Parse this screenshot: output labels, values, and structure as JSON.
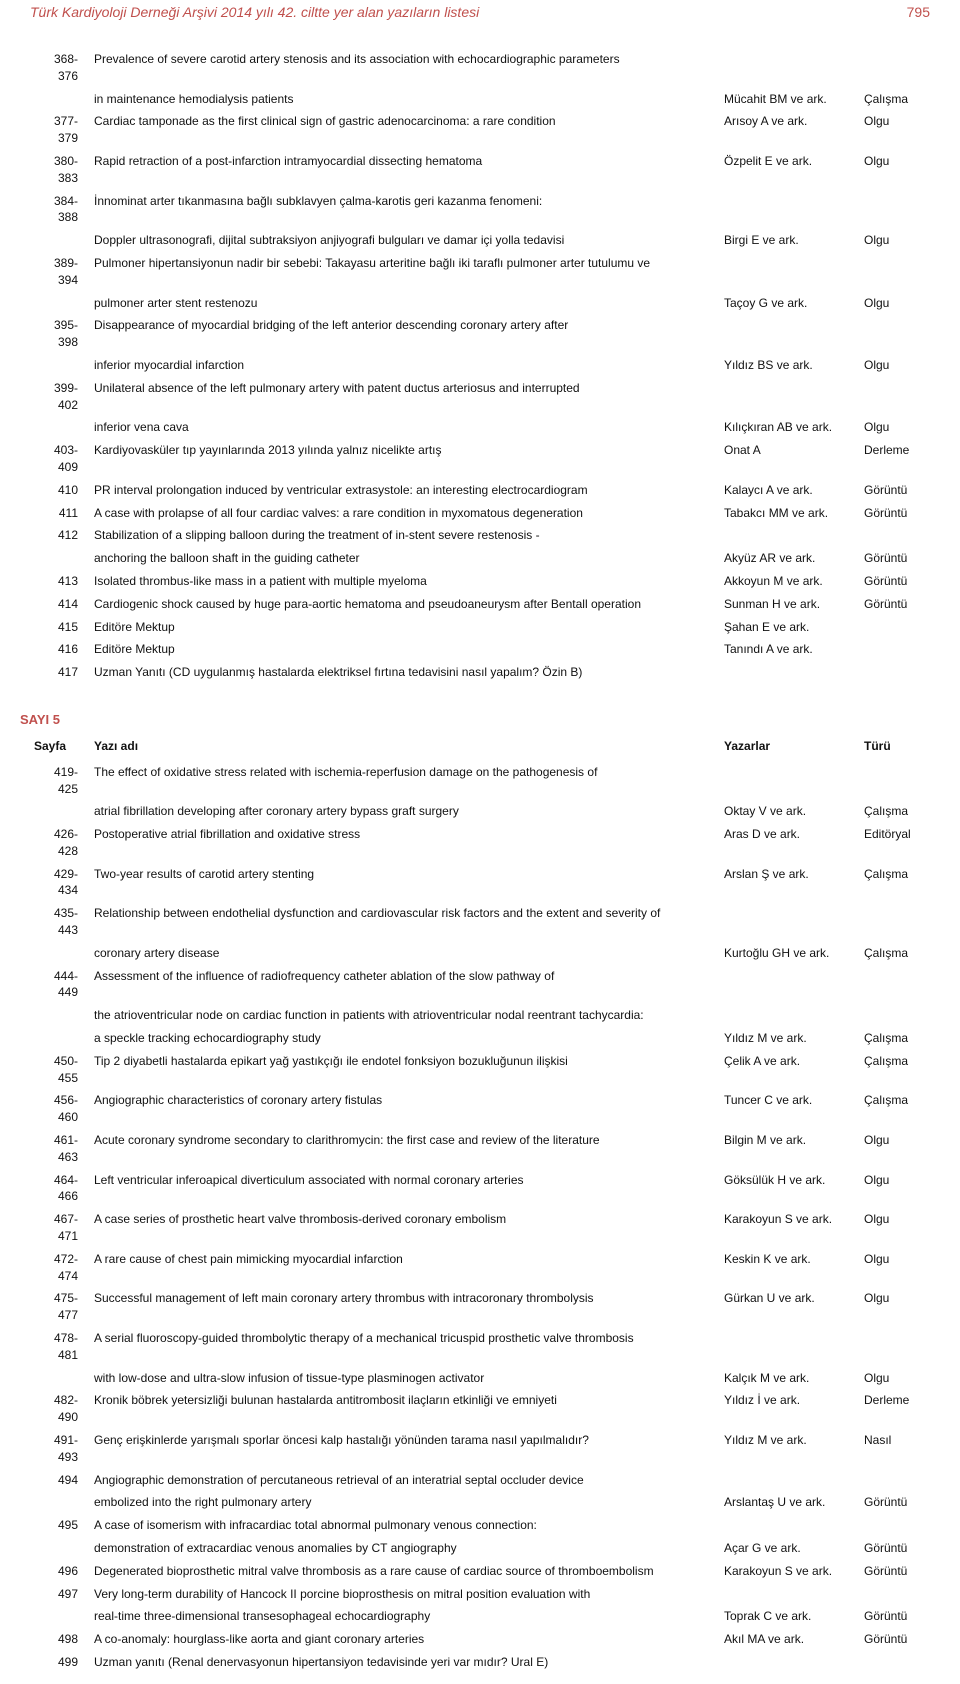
{
  "header": {
    "title": "Türk Kardiyoloji Derneği Arşivi 2014 yılı 42. ciltte yer alan yazıların listesi",
    "page_number": "795"
  },
  "section1": {
    "rows": [
      {
        "pages": "368-376",
        "lines": [
          {
            "t": "Prevalence of severe carotid artery stenosis and its association with echocardiographic parameters",
            "a": "",
            "y": ""
          },
          {
            "t": "in maintenance hemodialysis patients",
            "a": "Mücahit BM ve ark.",
            "y": "Çalışma"
          }
        ]
      },
      {
        "pages": "377-379",
        "lines": [
          {
            "t": "Cardiac tamponade as the first clinical sign of gastric adenocarcinoma: a rare condition",
            "a": "Arısoy A ve ark.",
            "y": "Olgu"
          }
        ]
      },
      {
        "pages": "380-383",
        "lines": [
          {
            "t": "Rapid retraction of a post-infarction intramyocardial dissecting hematoma",
            "a": "Özpelit E ve ark.",
            "y": "Olgu"
          }
        ]
      },
      {
        "pages": "384-388",
        "lines": [
          {
            "t": "İnnominat arter tıkanmasına bağlı subklavyen çalma-karotis geri kazanma fenomeni:",
            "a": "",
            "y": ""
          },
          {
            "t": "Doppler ultrasonografi, dijital subtraksiyon anjiyografi bulguları ve damar içi yolla tedavisi",
            "a": "Birgi E ve ark.",
            "y": "Olgu"
          }
        ]
      },
      {
        "pages": "389-394",
        "lines": [
          {
            "t": "Pulmoner hipertansiyonun nadir bir sebebi: Takayasu arteritine bağlı iki taraflı pulmoner arter tutulumu ve",
            "a": "",
            "y": ""
          },
          {
            "t": "pulmoner arter stent restenozu",
            "a": "Taçoy G ve ark.",
            "y": "Olgu"
          }
        ]
      },
      {
        "pages": "395-398",
        "lines": [
          {
            "t": "Disappearance of myocardial bridging of the left anterior descending coronary artery after",
            "a": "",
            "y": ""
          },
          {
            "t": "inferior myocardial infarction",
            "a": "Yıldız BS ve ark.",
            "y": "Olgu"
          }
        ]
      },
      {
        "pages": "399-402",
        "lines": [
          {
            "t": "Unilateral absence of the left pulmonary artery with patent ductus arteriosus and interrupted",
            "a": "",
            "y": ""
          },
          {
            "t": "inferior vena cava",
            "a": "Kılıçkıran AB ve ark.",
            "y": "Olgu"
          }
        ]
      },
      {
        "pages": "403-409",
        "lines": [
          {
            "t": "Kardiyovasküler tıp yayınlarında 2013 yılında yalnız nicelikte artış",
            "a": "Onat A",
            "y": "Derleme"
          }
        ]
      },
      {
        "pages": "410",
        "lines": [
          {
            "t": "PR interval prolongation induced by ventricular extrasystole: an interesting electrocardiogram",
            "a": "Kalaycı A ve ark.",
            "y": "Görüntü"
          }
        ]
      },
      {
        "pages": "411",
        "lines": [
          {
            "t": "A case with prolapse of all four cardiac valves: a rare condition in myxomatous degeneration",
            "a": "Tabakcı MM ve ark.",
            "y": "Görüntü"
          }
        ]
      },
      {
        "pages": "412",
        "lines": [
          {
            "t": "Stabilization of a slipping balloon during the treatment of in-stent severe restenosis -",
            "a": "",
            "y": ""
          },
          {
            "t": "anchoring the balloon shaft in the guiding catheter",
            "a": "Akyüz AR ve ark.",
            "y": "Görüntü"
          }
        ]
      },
      {
        "pages": "413",
        "lines": [
          {
            "t": "Isolated thrombus-like mass in a patient with multiple myeloma",
            "a": "Akkoyun M ve ark.",
            "y": "Görüntü"
          }
        ]
      },
      {
        "pages": "414",
        "lines": [
          {
            "t": "Cardiogenic shock caused by huge para-aortic hematoma and pseudoaneurysm after Bentall operation",
            "a": "Sunman H ve ark.",
            "y": "Görüntü"
          }
        ]
      },
      {
        "pages": "415",
        "lines": [
          {
            "t": "Editöre Mektup",
            "a": "Şahan E ve ark.",
            "y": ""
          }
        ]
      },
      {
        "pages": "416",
        "lines": [
          {
            "t": "Editöre Mektup",
            "a": "Tanındı A ve ark.",
            "y": ""
          }
        ]
      },
      {
        "pages": "417",
        "lines": [
          {
            "t": "Uzman Yanıtı (CD uygulanmış hastalarda elektriksel fırtına tedavisini nasıl yapalım? Özin B)",
            "a": "",
            "y": ""
          }
        ]
      }
    ]
  },
  "section2": {
    "label": "SAYI 5",
    "header": {
      "pages": "Sayfa",
      "title": "Yazı adı",
      "authors": "Yazarlar",
      "type": "Türü"
    },
    "rows": [
      {
        "pages": "419-425",
        "lines": [
          {
            "t": "The effect of oxidative stress related with ischemia-reperfusion damage on the pathogenesis of",
            "a": "",
            "y": ""
          },
          {
            "t": "atrial fibrillation developing after coronary artery bypass graft surgery",
            "a": "Oktay V ve ark.",
            "y": "Çalışma"
          }
        ]
      },
      {
        "pages": "426-428",
        "lines": [
          {
            "t": "Postoperative atrial fibrillation and oxidative stress",
            "a": "Aras D ve ark.",
            "y": "Editöryal"
          }
        ]
      },
      {
        "pages": "429-434",
        "lines": [
          {
            "t": "Two-year results of carotid artery stenting",
            "a": "Arslan Ş ve ark.",
            "y": "Çalışma"
          }
        ]
      },
      {
        "pages": "435-443",
        "lines": [
          {
            "t": "Relationship between endothelial dysfunction and cardiovascular risk factors and the extent and severity of",
            "a": "",
            "y": ""
          },
          {
            "t": "coronary artery disease",
            "a": "Kurtoğlu GH ve ark.",
            "y": "Çalışma"
          }
        ]
      },
      {
        "pages": "444-449",
        "lines": [
          {
            "t": "Assessment of the influence of radiofrequency catheter ablation of the slow pathway of",
            "a": "",
            "y": ""
          },
          {
            "t": "the atrioventricular node on cardiac function in patients with atrioventricular nodal reentrant tachycardia:",
            "a": "",
            "y": ""
          },
          {
            "t": "a speckle tracking echocardiography study",
            "a": "Yıldız M ve ark.",
            "y": "Çalışma"
          }
        ]
      },
      {
        "pages": "450-455",
        "lines": [
          {
            "t": "Tip 2 diyabetli hastalarda epikart yağ yastıkçığı ile endotel fonksiyon bozukluğunun ilişkisi",
            "a": "Çelik A ve ark.",
            "y": "Çalışma"
          }
        ]
      },
      {
        "pages": "456-460",
        "lines": [
          {
            "t": "Angiographic characteristics of coronary artery fistulas",
            "a": "Tuncer C ve ark.",
            "y": "Çalışma"
          }
        ]
      },
      {
        "pages": "461-463",
        "lines": [
          {
            "t": "Acute coronary syndrome secondary to clarithromycin: the first case and review of the literature",
            "a": "Bilgin M ve ark.",
            "y": "Olgu"
          }
        ]
      },
      {
        "pages": "464-466",
        "lines": [
          {
            "t": "Left ventricular inferoapical diverticulum associated with normal coronary arteries",
            "a": "Göksülük H ve ark.",
            "y": "Olgu"
          }
        ]
      },
      {
        "pages": "467-471",
        "lines": [
          {
            "t": "A case series of prosthetic heart valve thrombosis-derived coronary embolism",
            "a": "Karakoyun S ve ark.",
            "y": "Olgu"
          }
        ]
      },
      {
        "pages": "472-474",
        "lines": [
          {
            "t": "A rare cause of chest pain mimicking myocardial infarction",
            "a": "Keskin K ve ark.",
            "y": "Olgu"
          }
        ]
      },
      {
        "pages": "475-477",
        "lines": [
          {
            "t": "Successful management of left main coronary artery thrombus with intracoronary thrombolysis",
            "a": "Gürkan U ve ark.",
            "y": "Olgu"
          }
        ]
      },
      {
        "pages": "478-481",
        "lines": [
          {
            "t": "A serial fluoroscopy-guided thrombolytic therapy of a mechanical tricuspid prosthetic valve thrombosis",
            "a": "",
            "y": ""
          },
          {
            "t": "with low-dose and ultra-slow infusion of tissue-type plasminogen activator",
            "a": "Kalçık M ve ark.",
            "y": "Olgu"
          }
        ]
      },
      {
        "pages": "482-490",
        "lines": [
          {
            "t": "Kronik böbrek yetersizliği bulunan hastalarda antitrombosit ilaçların etkinliği ve emniyeti",
            "a": "Yıldız İ ve ark.",
            "y": "Derleme"
          }
        ]
      },
      {
        "pages": "491-493",
        "lines": [
          {
            "t": "Genç erişkinlerde yarışmalı sporlar öncesi kalp hastalığı yönünden tarama nasıl yapılmalıdır?",
            "a": "Yıldız M ve ark.",
            "y": "Nasıl"
          }
        ]
      },
      {
        "pages": "494",
        "lines": [
          {
            "t": "Angiographic demonstration of percutaneous retrieval of an interatrial septal occluder device",
            "a": "",
            "y": ""
          },
          {
            "t": "embolized into the right pulmonary artery",
            "a": "Arslantaş U ve ark.",
            "y": "Görüntü"
          }
        ]
      },
      {
        "pages": "495",
        "lines": [
          {
            "t": "A case of isomerism with infracardiac total abnormal pulmonary venous connection:",
            "a": "",
            "y": ""
          },
          {
            "t": "demonstration of extracardiac venous anomalies by CT angiography",
            "a": "Açar G ve ark.",
            "y": "Görüntü"
          }
        ]
      },
      {
        "pages": "496",
        "lines": [
          {
            "t": "Degenerated bioprosthetic mitral valve thrombosis as a rare cause of cardiac source of thromboembolism",
            "a": "Karakoyun S ve ark.",
            "y": "Görüntü"
          }
        ]
      },
      {
        "pages": "497",
        "lines": [
          {
            "t": "Very long-term durability of Hancock II porcine bioprosthesis on mitral position evaluation with",
            "a": "",
            "y": ""
          },
          {
            "t": "real-time three-dimensional transesophageal echocardiography",
            "a": "Toprak C ve ark.",
            "y": "Görüntü"
          }
        ]
      },
      {
        "pages": "498",
        "lines": [
          {
            "t": "A co-anomaly: hourglass-like aorta and giant coronary arteries",
            "a": "Akıl MA ve ark.",
            "y": "Görüntü"
          }
        ]
      },
      {
        "pages": "499",
        "lines": [
          {
            "t": "Uzman yanıtı (Renal denervasyonun hipertansiyon tedavisinde yeri var mıdır? Ural E)",
            "a": "",
            "y": ""
          }
        ]
      }
    ]
  }
}
